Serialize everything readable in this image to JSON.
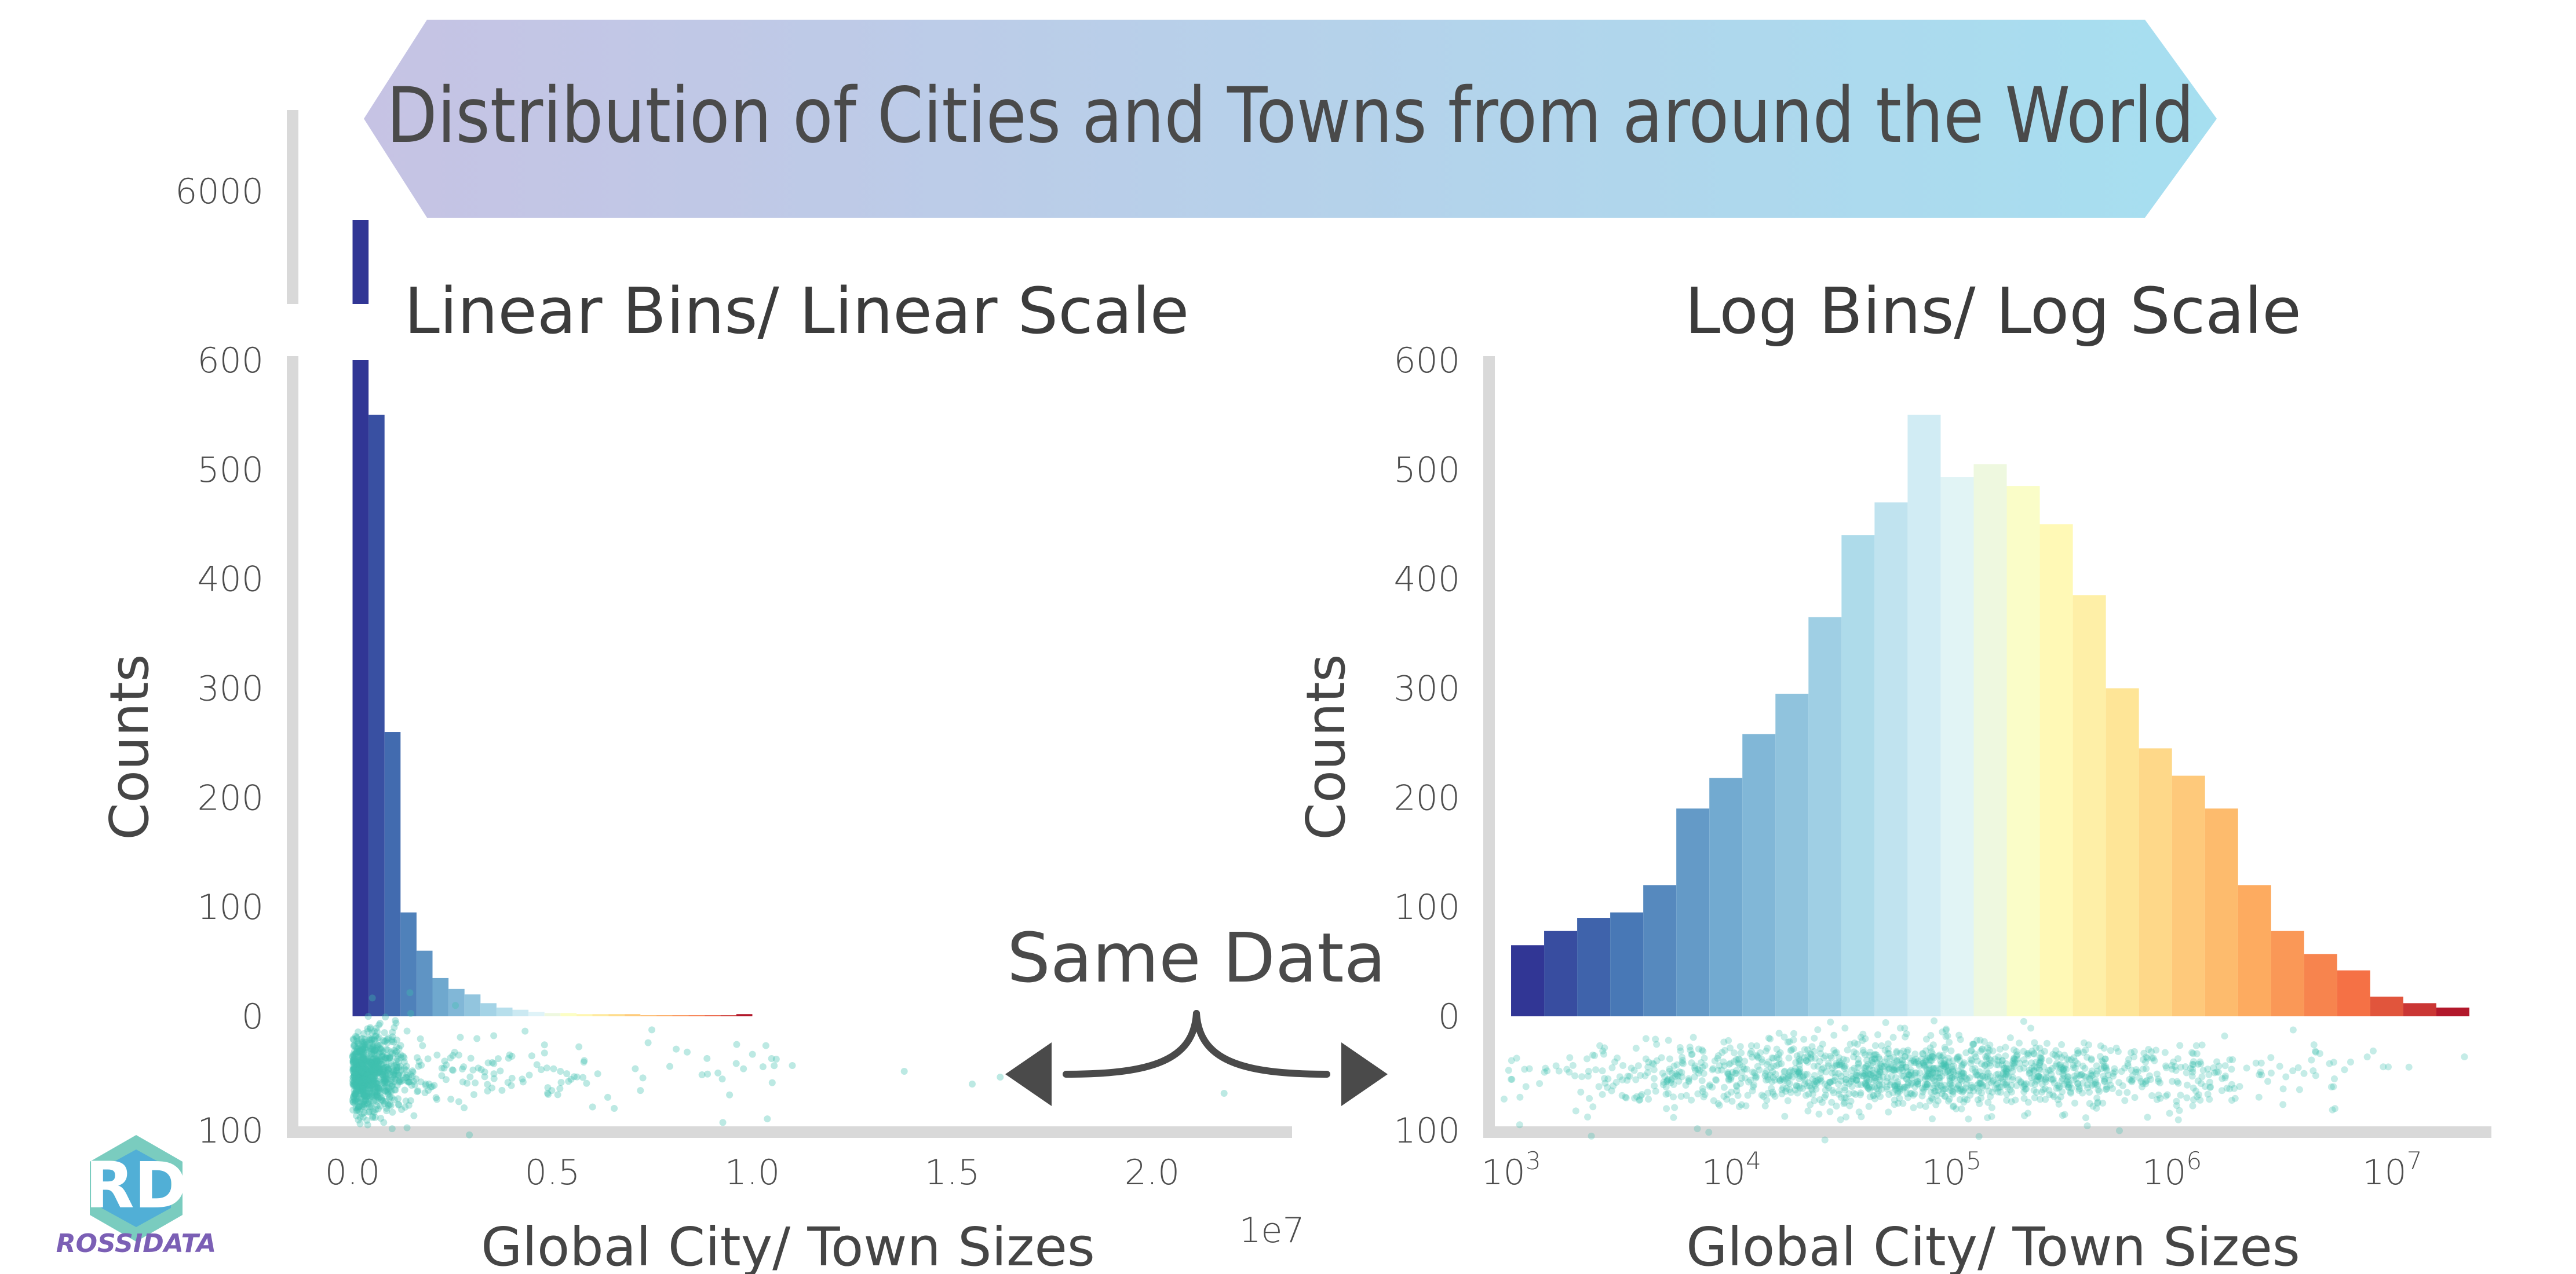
{
  "title": "Distribution of Cities and Towns from around the World",
  "annotation": "Same Data",
  "logo_text": "ROSSIDATA",
  "colors": {
    "banner_left": "#c6c3e4",
    "banner_right": "#a6dff0",
    "axis": "#d9d9d9",
    "strip_points": "#3fbfb0",
    "arrow": "#4a4a4a"
  },
  "chart_data": [
    {
      "type": "bar",
      "title": "Linear Bins/ Linear Scale",
      "xlabel": "Global City/ Town Sizes",
      "ylabel": "Counts",
      "x_scale_note": "1e7",
      "broken_y_axis": true,
      "lower_ylim": [
        0,
        600
      ],
      "upper_ytick": "6000",
      "upper_bar_value": 5700,
      "xlim": [
        -0.15,
        2.35
      ],
      "xticks": [
        "0.0",
        "0.5",
        "1.0",
        "1.5",
        "2.0"
      ],
      "xtick_values": [
        0,
        0.5,
        1.0,
        1.5,
        2.0
      ],
      "yticks": [
        "0",
        "100",
        "200",
        "300",
        "400",
        "500",
        "600"
      ],
      "ytick_values": [
        0,
        100,
        200,
        300,
        400,
        500,
        600
      ],
      "strip_tick": "100",
      "bin_width": 0.04,
      "bin_start": 0.0,
      "values": [
        5700,
        550,
        260,
        95,
        60,
        35,
        25,
        20,
        12,
        8,
        6,
        4,
        3,
        3,
        2,
        2,
        2,
        2,
        1,
        1,
        1,
        1,
        1,
        1,
        2
      ]
    },
    {
      "type": "bar",
      "title": "Log Bins/ Log Scale",
      "xlabel": "Global City/ Town Sizes",
      "ylabel": "Counts",
      "log_x": true,
      "xlim": [
        2.9,
        7.45
      ],
      "xticks": [
        "10^3",
        "10^4",
        "10^5",
        "10^6",
        "10^7"
      ],
      "xtick_values": [
        3,
        4,
        5,
        6,
        7
      ],
      "ylim": [
        0,
        600
      ],
      "yticks": [
        "0",
        "100",
        "200",
        "300",
        "400",
        "500",
        "600"
      ],
      "ytick_values": [
        0,
        100,
        200,
        300,
        400,
        500,
        600
      ],
      "strip_tick": "100",
      "bin_start_log10": 3.0,
      "bin_width_log10": 0.15,
      "values": [
        65,
        78,
        90,
        95,
        120,
        190,
        218,
        258,
        295,
        365,
        440,
        470,
        550,
        493,
        505,
        485,
        450,
        385,
        300,
        245,
        220,
        190,
        120,
        78,
        57,
        42,
        18,
        12,
        8
      ]
    }
  ]
}
